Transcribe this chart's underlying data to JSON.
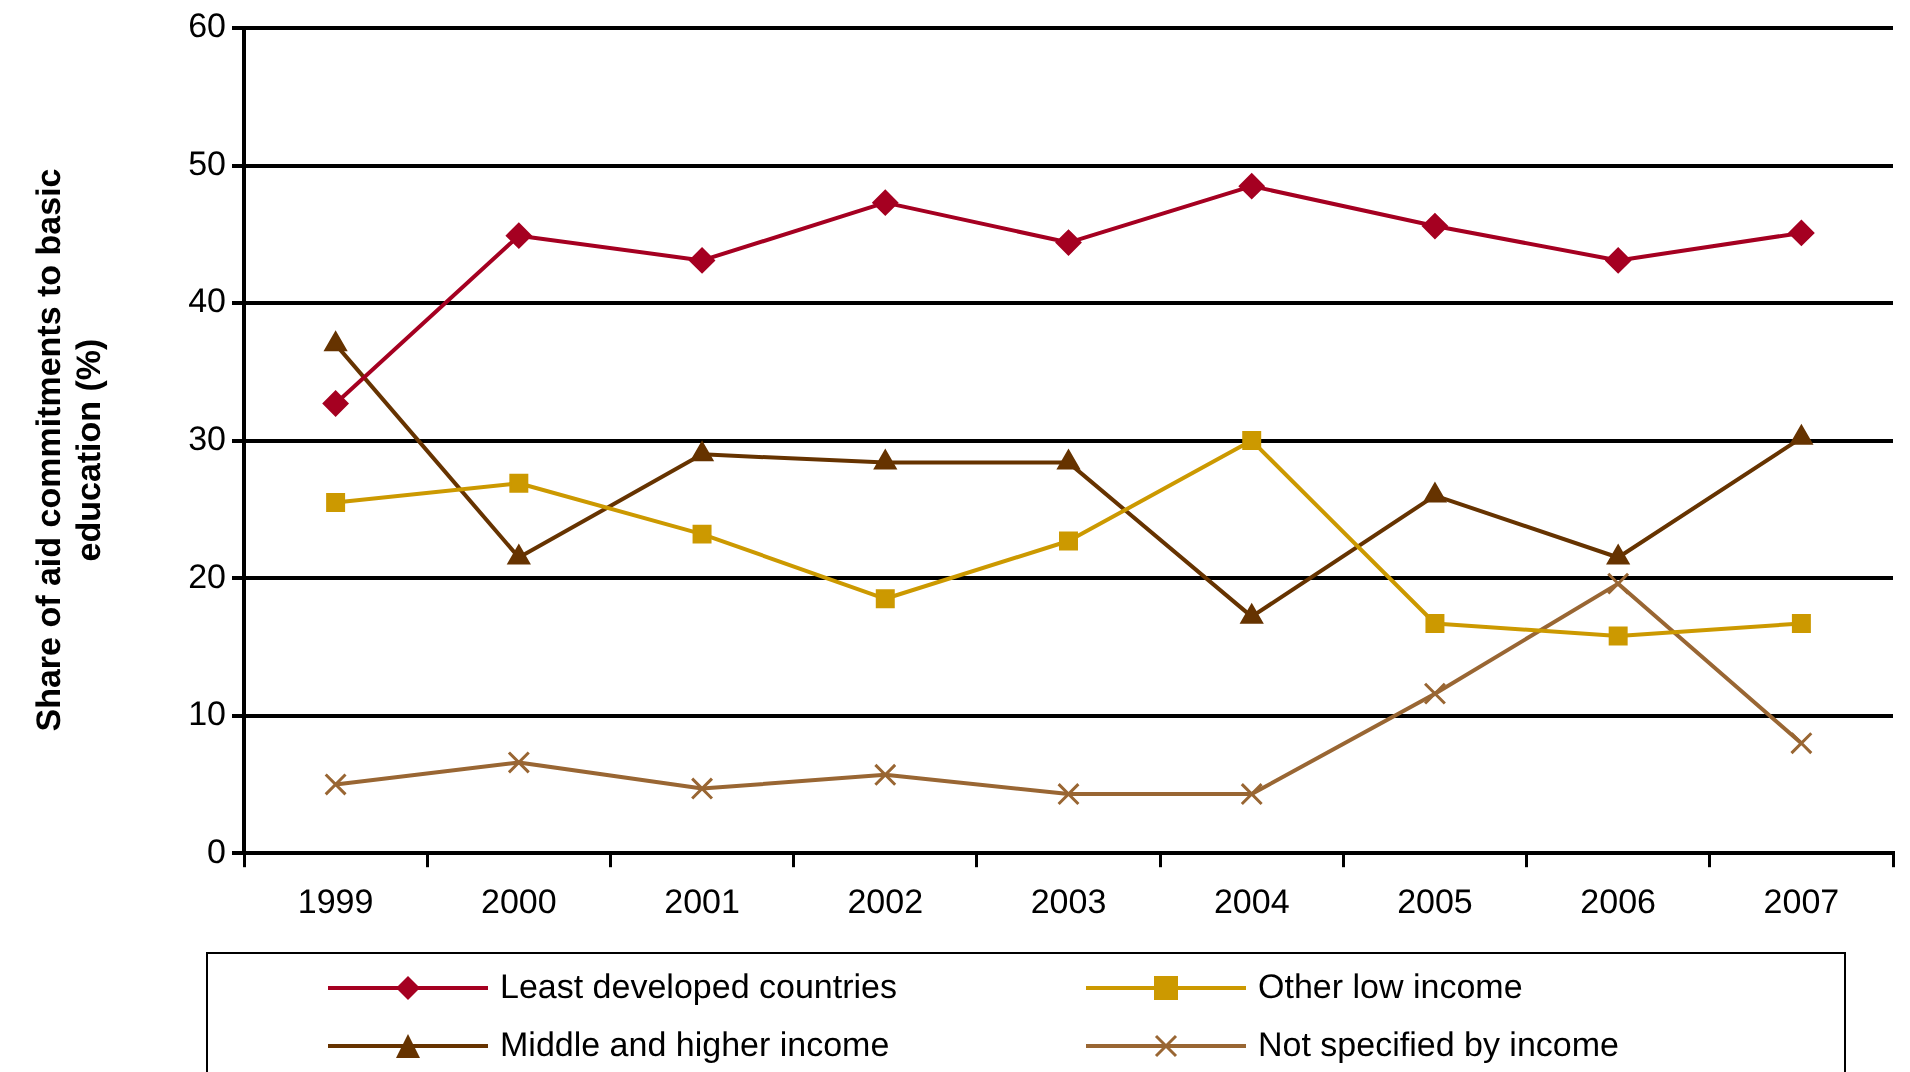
{
  "chart_data": {
    "type": "line",
    "ylabel": "Share of aid commitments to basic education (%)",
    "categories": [
      "1999",
      "2000",
      "2001",
      "2002",
      "2003",
      "2004",
      "2005",
      "2006",
      "2007"
    ],
    "series": [
      {
        "name": "Least developed countries",
        "color": "#a50021",
        "marker": "diamond",
        "values": [
          32.7,
          44.9,
          43.1,
          47.3,
          44.4,
          48.5,
          45.6,
          43.1,
          45.1
        ]
      },
      {
        "name": "Other low income",
        "color": "#cc9900",
        "marker": "square",
        "values": [
          25.5,
          26.9,
          23.2,
          18.5,
          22.7,
          30.0,
          16.7,
          15.8,
          16.7
        ]
      },
      {
        "name": "Middle and higher income",
        "color": "#663300",
        "marker": "triangle",
        "values": [
          37.0,
          21.5,
          29.0,
          28.4,
          28.4,
          17.2,
          26.0,
          21.5,
          30.2
        ]
      },
      {
        "name": "Not specified by income",
        "color": "#996633",
        "marker": "cross",
        "values": [
          5.0,
          6.6,
          4.7,
          5.7,
          4.3,
          4.3,
          11.6,
          19.6,
          8.0
        ]
      }
    ],
    "ylim": [
      0,
      60
    ],
    "yticks": [
      0,
      10,
      20,
      30,
      40,
      50,
      60
    ],
    "grid": "y",
    "legend": "bottom",
    "line_style": "solid"
  }
}
